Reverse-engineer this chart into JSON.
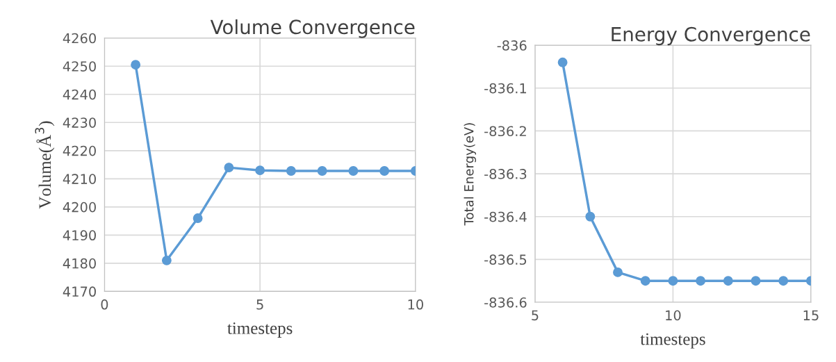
{
  "chart_data": [
    {
      "type": "line",
      "title": "Volume Convergence",
      "xlabel": "timesteps",
      "ylabel": "Volume(Å$^{3}$)",
      "x": [
        1,
        2,
        3,
        4,
        5,
        6,
        7,
        8,
        9,
        10
      ],
      "series": [
        {
          "color": "#5b9bd5",
          "values": [
            4250.5,
            4181,
            4196,
            4214,
            4213,
            4212.8,
            4212.8,
            4212.8,
            4212.8,
            4212.8
          ]
        }
      ],
      "xlim": [
        0,
        10
      ],
      "xticks": [
        0,
        5,
        10
      ],
      "ylim": [
        4170,
        4260
      ],
      "yticks": [
        4170,
        4180,
        4190,
        4200,
        4210,
        4220,
        4230,
        4240,
        4250,
        4260
      ],
      "grid": true,
      "marker": "circle",
      "line_style": "solid"
    },
    {
      "type": "line",
      "title": "Energy Convergence",
      "xlabel": "timesteps",
      "ylabel": "Total Energy(eV)",
      "x": [
        6,
        7,
        8,
        9,
        10,
        11,
        12,
        13,
        14,
        15
      ],
      "series": [
        {
          "color": "#5b9bd5",
          "values": [
            -836.04,
            -836.4,
            -836.53,
            -836.55,
            -836.55,
            -836.55,
            -836.55,
            -836.55,
            -836.55,
            -836.55
          ]
        }
      ],
      "xlim": [
        5,
        15
      ],
      "xticks": [
        5,
        10,
        15
      ],
      "ylim": [
        -836.6,
        -836
      ],
      "yticks": [
        {
          "value": -836.6,
          "label": "-836.6"
        },
        {
          "value": -836.5,
          "label": "-836.5"
        },
        {
          "value": -836.4,
          "label": "-836.4"
        },
        {
          "value": -836.3,
          "label": "-836.3"
        },
        {
          "value": -836.2,
          "label": "-836.2"
        },
        {
          "value": -836.1,
          "label": "-836.1"
        },
        {
          "value": -836,
          "label": "-836"
        }
      ],
      "grid": true,
      "marker": "circle",
      "line_style": "solid"
    }
  ]
}
